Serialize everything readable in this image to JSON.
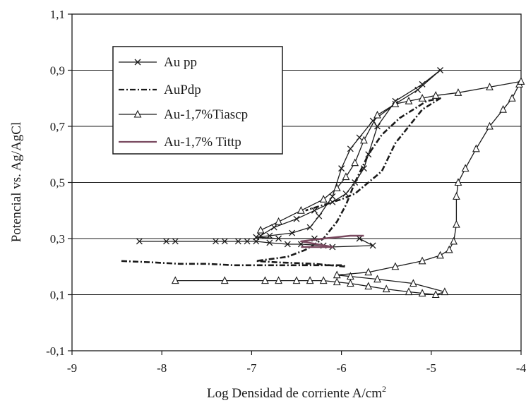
{
  "chart_data": {
    "type": "line",
    "title": "",
    "xlabel": "Log Densidad de corriente A/cm",
    "xlabel_sup": "2",
    "ylabel": "Potencial vs. Ag/AgCl",
    "xlim": [
      -9,
      -4
    ],
    "ylim": [
      -0.1,
      1.1
    ],
    "xticks": [
      -9,
      -8,
      -7,
      -6,
      -5,
      -4
    ],
    "xtick_labels": [
      "-9",
      "-8",
      "-7",
      "-6",
      "-5",
      "-4"
    ],
    "yticks": [
      -0.1,
      0.1,
      0.3,
      0.5,
      0.7,
      0.9,
      1.1
    ],
    "ytick_labels": [
      "-0,1",
      "0,1",
      "0,3",
      "0,5",
      "0,7",
      "0,9",
      "1,1"
    ],
    "grid": "horizontal",
    "legend_position": "top-left",
    "series": [
      {
        "name": "Au pp",
        "marker": "x",
        "color": "#1a1a1a",
        "points": [
          [
            -8.25,
            0.29
          ],
          [
            -7.95,
            0.29
          ],
          [
            -7.85,
            0.29
          ],
          [
            -7.4,
            0.29
          ],
          [
            -7.3,
            0.29
          ],
          [
            -7.15,
            0.29
          ],
          [
            -7.05,
            0.29
          ],
          [
            -6.95,
            0.29
          ],
          [
            -6.8,
            0.285
          ],
          [
            -6.6,
            0.28
          ],
          [
            -6.45,
            0.28
          ],
          [
            -6.2,
            0.275
          ],
          [
            -6.1,
            0.27
          ],
          [
            -5.65,
            0.275
          ],
          [
            -5.8,
            0.3
          ],
          [
            -6.3,
            0.3
          ],
          [
            -6.7,
            0.3
          ],
          [
            -6.95,
            0.305
          ],
          [
            -6.8,
            0.31
          ],
          [
            -6.55,
            0.32
          ],
          [
            -6.35,
            0.34
          ],
          [
            -6.25,
            0.38
          ],
          [
            -6.1,
            0.45
          ],
          [
            -6.0,
            0.55
          ],
          [
            -5.9,
            0.62
          ],
          [
            -5.8,
            0.66
          ],
          [
            -5.65,
            0.72
          ],
          [
            -5.4,
            0.78
          ],
          [
            -5.15,
            0.83
          ],
          [
            -4.9,
            0.9
          ],
          [
            -5.1,
            0.85
          ],
          [
            -5.4,
            0.79
          ],
          [
            -5.6,
            0.7
          ],
          [
            -5.7,
            0.6
          ],
          [
            -5.75,
            0.55
          ],
          [
            -5.85,
            0.5
          ],
          [
            -5.95,
            0.46
          ],
          [
            -6.1,
            0.43
          ],
          [
            -6.3,
            0.4
          ],
          [
            -6.5,
            0.37
          ],
          [
            -6.75,
            0.34
          ],
          [
            -6.9,
            0.31
          ]
        ]
      },
      {
        "name": "AuPdp",
        "marker": "none",
        "color": "#1a1a1a",
        "points": [
          [
            -8.45,
            0.22
          ],
          [
            -8.1,
            0.215
          ],
          [
            -7.8,
            0.21
          ],
          [
            -7.5,
            0.21
          ],
          [
            -7.2,
            0.205
          ],
          [
            -6.9,
            0.205
          ],
          [
            -6.5,
            0.205
          ],
          [
            -6.0,
            0.205
          ],
          [
            -5.95,
            0.2
          ],
          [
            -6.3,
            0.21
          ],
          [
            -6.7,
            0.215
          ],
          [
            -6.95,
            0.22
          ],
          [
            -6.6,
            0.235
          ],
          [
            -6.4,
            0.26
          ],
          [
            -6.2,
            0.3
          ],
          [
            -6.05,
            0.36
          ],
          [
            -5.95,
            0.42
          ],
          [
            -5.85,
            0.5
          ],
          [
            -5.7,
            0.6
          ],
          [
            -5.55,
            0.67
          ],
          [
            -5.35,
            0.73
          ],
          [
            -5.2,
            0.76
          ],
          [
            -5.05,
            0.79
          ],
          [
            -4.9,
            0.8
          ],
          [
            -5.1,
            0.76
          ],
          [
            -5.4,
            0.64
          ],
          [
            -5.55,
            0.54
          ],
          [
            -5.7,
            0.5
          ],
          [
            -5.85,
            0.46
          ],
          [
            -6.0,
            0.44
          ],
          [
            -6.2,
            0.42
          ],
          [
            -6.4,
            0.4
          ]
        ]
      },
      {
        "name": "Au-1,7%Tiascp",
        "marker": "triangle",
        "color": "#1a1a1a",
        "points": [
          [
            -7.85,
            0.15
          ],
          [
            -7.3,
            0.15
          ],
          [
            -6.85,
            0.15
          ],
          [
            -6.7,
            0.15
          ],
          [
            -6.5,
            0.15
          ],
          [
            -6.35,
            0.15
          ],
          [
            -6.2,
            0.15
          ],
          [
            -6.05,
            0.145
          ],
          [
            -5.9,
            0.14
          ],
          [
            -5.7,
            0.13
          ],
          [
            -5.5,
            0.12
          ],
          [
            -5.25,
            0.11
          ],
          [
            -5.1,
            0.105
          ],
          [
            -4.95,
            0.1
          ],
          [
            -4.85,
            0.11
          ],
          [
            -5.2,
            0.14
          ],
          [
            -5.6,
            0.155
          ],
          [
            -5.9,
            0.165
          ],
          [
            -6.05,
            0.17
          ],
          [
            -5.7,
            0.18
          ],
          [
            -5.4,
            0.2
          ],
          [
            -5.1,
            0.22
          ],
          [
            -4.9,
            0.24
          ],
          [
            -4.8,
            0.26
          ],
          [
            -4.75,
            0.29
          ],
          [
            -4.72,
            0.35
          ],
          [
            -4.72,
            0.45
          ],
          [
            -4.7,
            0.5
          ],
          [
            -4.62,
            0.55
          ],
          [
            -4.5,
            0.62
          ],
          [
            -4.35,
            0.7
          ],
          [
            -4.2,
            0.76
          ],
          [
            -4.1,
            0.8
          ],
          [
            -4.02,
            0.85
          ],
          [
            -4.0,
            0.86
          ],
          [
            -4.35,
            0.84
          ],
          [
            -4.7,
            0.82
          ],
          [
            -4.95,
            0.81
          ],
          [
            -5.1,
            0.8
          ],
          [
            -5.25,
            0.79
          ],
          [
            -5.4,
            0.78
          ],
          [
            -5.6,
            0.74
          ],
          [
            -5.75,
            0.65
          ],
          [
            -5.85,
            0.57
          ],
          [
            -5.95,
            0.52
          ],
          [
            -6.05,
            0.48
          ],
          [
            -6.2,
            0.44
          ],
          [
            -6.45,
            0.4
          ],
          [
            -6.7,
            0.36
          ],
          [
            -6.9,
            0.33
          ]
        ]
      },
      {
        "name": "Au-1,7% Tittp",
        "marker": "none",
        "color": "#7a4a60",
        "points": [
          [
            -6.45,
            0.27
          ],
          [
            -6.3,
            0.27
          ],
          [
            -6.1,
            0.27
          ],
          [
            -6.45,
            0.29
          ],
          [
            -6.2,
            0.3
          ],
          [
            -5.9,
            0.31
          ],
          [
            -5.75,
            0.31
          ]
        ]
      }
    ]
  }
}
